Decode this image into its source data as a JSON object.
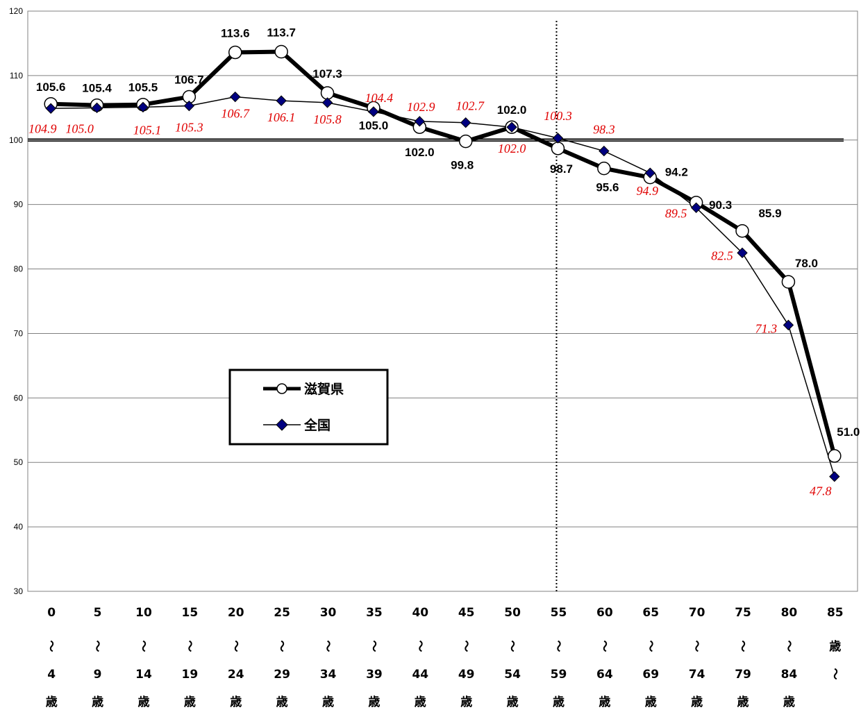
{
  "chart_data": {
    "type": "line",
    "ylim": [
      30,
      120
    ],
    "yticks": [
      30,
      40,
      50,
      60,
      70,
      80,
      90,
      100,
      110,
      120
    ],
    "grid": true,
    "reference_line": 100,
    "divider_after_category": "55",
    "legend_position": "center-left",
    "categories": [
      [
        "0",
        "～",
        "4",
        "歳"
      ],
      [
        "5",
        "～",
        "9",
        "歳"
      ],
      [
        "10",
        "～",
        "14",
        "歳"
      ],
      [
        "15",
        "～",
        "19",
        "歳"
      ],
      [
        "20",
        "～",
        "24",
        "歳"
      ],
      [
        "25",
        "～",
        "29",
        "歳"
      ],
      [
        "30",
        "～",
        "34",
        "歳"
      ],
      [
        "35",
        "～",
        "39",
        "歳"
      ],
      [
        "40",
        "～",
        "44",
        "歳"
      ],
      [
        "45",
        "～",
        "49",
        "歳"
      ],
      [
        "50",
        "～",
        "54",
        "歳"
      ],
      [
        "55",
        "～",
        "59",
        "歳"
      ],
      [
        "60",
        "～",
        "64",
        "歳"
      ],
      [
        "65",
        "～",
        "69",
        "歳"
      ],
      [
        "70",
        "～",
        "74",
        "歳"
      ],
      [
        "75",
        "～",
        "79",
        "歳"
      ],
      [
        "80",
        "～",
        "84",
        "歳"
      ],
      [
        "85",
        "歳",
        "～",
        ""
      ]
    ],
    "series": [
      {
        "name": "滋賀県",
        "color": "#000000",
        "marker": "circle",
        "values": [
          105.6,
          105.4,
          105.5,
          106.7,
          113.6,
          113.7,
          107.3,
          105.0,
          102.0,
          99.8,
          102.0,
          98.7,
          95.6,
          94.2,
          90.3,
          85.9,
          78.0,
          51.0
        ],
        "labels": [
          "105.6",
          "105.4",
          "105.5",
          "106.7",
          "113.6",
          "113.7",
          "107.3",
          "105.0",
          "102.0",
          "99.8",
          "102.0",
          "98.7",
          "95.6",
          "94.2",
          "90.3",
          "85.9",
          "78.0",
          "51.0"
        ],
        "label_color": "#000000"
      },
      {
        "name": "全国",
        "color": "#000000",
        "marker": "diamond",
        "marker_color": "#000080",
        "values": [
          104.9,
          105.0,
          105.1,
          105.3,
          106.7,
          106.1,
          105.8,
          104.4,
          102.9,
          102.7,
          102.0,
          100.3,
          98.3,
          94.9,
          89.5,
          82.5,
          71.3,
          47.8
        ],
        "labels": [
          "104.9",
          "105.0",
          "105.1",
          "105.3",
          "106.7",
          "106.1",
          "105.8",
          "104.4",
          "102.9",
          "102.7",
          "102.0",
          "100.3",
          "98.3",
          "94.9",
          "89.5",
          "82.5",
          "71.3",
          "47.8"
        ],
        "label_color": "#e00000"
      }
    ]
  }
}
